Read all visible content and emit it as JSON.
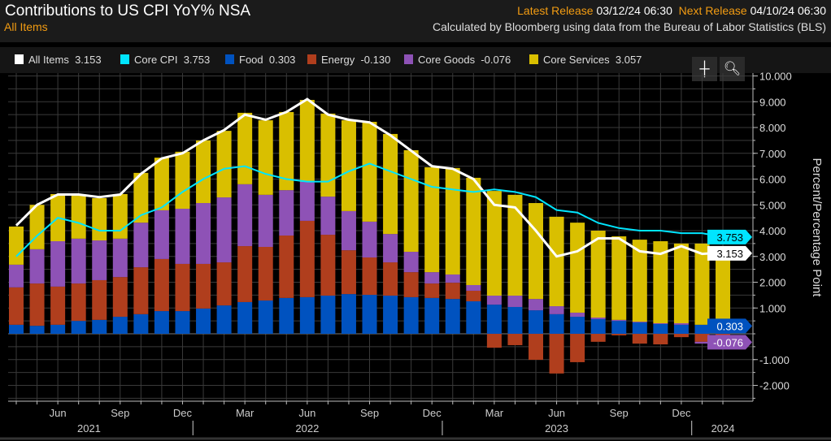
{
  "header": {
    "title": "Contributions to US CPI YoY% NSA",
    "subtitle": "All Items",
    "latest_label": "Latest Release",
    "latest_value": "03/12/24 06:30",
    "next_label": "Next Release",
    "next_value": "04/10/24 06:30",
    "source": "Calculated by Bloomberg using data from the Bureau of Labor Statistics (BLS)"
  },
  "legend": [
    {
      "label": "All Items",
      "value": "3.153",
      "color": "#ffffff"
    },
    {
      "label": "Core CPI",
      "value": "3.753",
      "color": "#00e5ff"
    },
    {
      "label": "Food",
      "value": "0.303",
      "color": "#0052bf"
    },
    {
      "label": "Energy",
      "value": "-0.130",
      "color": "#b03e1d"
    },
    {
      "label": "Core Goods",
      "value": "-0.076",
      "color": "#8e52b6"
    },
    {
      "label": "Core Services",
      "value": "3.057",
      "color": "#d9bf00"
    }
  ],
  "toolbar": {
    "crosshair_icon": "crosshair-icon",
    "zoom_icon": "magnifier-icon"
  },
  "chart_data": {
    "type": "bar+line",
    "stacked": true,
    "ylabel": "Percent/Percentage Point",
    "ylim": [
      -2.6,
      10.3
    ],
    "yticks": [
      "10.000",
      "9.000",
      "8.000",
      "7.000",
      "6.000",
      "5.000",
      "4.000",
      "3.000",
      "2.000",
      "1.000",
      "0",
      "-1.000",
      "-2.000"
    ],
    "grid": true,
    "x": [
      "2021-04",
      "2021-05",
      "2021-06",
      "2021-07",
      "2021-08",
      "2021-09",
      "2021-10",
      "2021-11",
      "2021-12",
      "2022-01",
      "2022-02",
      "2022-03",
      "2022-04",
      "2022-05",
      "2022-06",
      "2022-07",
      "2022-08",
      "2022-09",
      "2022-10",
      "2022-11",
      "2022-12",
      "2023-01",
      "2023-02",
      "2023-03",
      "2023-04",
      "2023-05",
      "2023-06",
      "2023-07",
      "2023-08",
      "2023-09",
      "2023-10",
      "2023-11",
      "2023-12",
      "2024-01",
      "2024-02"
    ],
    "xticks": [
      {
        "i": 2,
        "label": "Jun"
      },
      {
        "i": 5,
        "label": "Sep"
      },
      {
        "i": 8,
        "label": "Dec"
      },
      {
        "i": 11,
        "label": "Mar"
      },
      {
        "i": 14,
        "label": "Jun"
      },
      {
        "i": 17,
        "label": "Sep"
      },
      {
        "i": 20,
        "label": "Dec"
      },
      {
        "i": 23,
        "label": "Mar"
      },
      {
        "i": 26,
        "label": "Jun"
      },
      {
        "i": 29,
        "label": "Sep"
      },
      {
        "i": 32,
        "label": "Dec"
      }
    ],
    "years": [
      {
        "label": "2021",
        "i": 3.5
      },
      {
        "label": "2022",
        "i": 14
      },
      {
        "label": "2023",
        "i": 26
      },
      {
        "label": "2024",
        "i": 34
      }
    ],
    "bar_series": [
      {
        "name": "Food",
        "color": "#0052bf",
        "values": [
          0.35,
          0.31,
          0.35,
          0.5,
          0.54,
          0.66,
          0.76,
          0.88,
          0.88,
          0.98,
          1.1,
          1.23,
          1.29,
          1.39,
          1.42,
          1.48,
          1.54,
          1.51,
          1.48,
          1.42,
          1.39,
          1.35,
          1.26,
          1.13,
          1.04,
          0.91,
          0.76,
          0.66,
          0.57,
          0.5,
          0.44,
          0.38,
          0.35,
          0.35,
          0.303
        ]
      },
      {
        "name": "Energy",
        "color": "#b03e1d",
        "values": [
          1.45,
          1.64,
          1.48,
          1.45,
          1.54,
          1.54,
          1.82,
          2.02,
          1.83,
          1.73,
          1.67,
          2.17,
          2.08,
          2.42,
          2.96,
          2.36,
          1.7,
          1.45,
          1.29,
          0.97,
          0.56,
          0.63,
          0.41,
          -0.54,
          -0.44,
          -1.01,
          -1.54,
          -1.1,
          -0.31,
          -0.06,
          -0.38,
          -0.41,
          -0.13,
          -0.31,
          -0.13
        ]
      },
      {
        "name": "Core Goods",
        "color": "#8e52b6",
        "values": [
          0.88,
          1.33,
          1.76,
          1.74,
          1.54,
          1.49,
          1.73,
          1.89,
          2.14,
          2.36,
          2.52,
          2.4,
          2.02,
          1.76,
          1.51,
          1.48,
          1.52,
          1.39,
          1.1,
          0.79,
          0.44,
          0.32,
          0.22,
          0.35,
          0.44,
          0.44,
          0.31,
          0.16,
          0.06,
          0.04,
          0.03,
          0.03,
          0.06,
          -0.07,
          -0.076
        ]
      },
      {
        "name": "Core Services",
        "color": "#d9bf00",
        "values": [
          1.48,
          1.72,
          1.83,
          1.7,
          1.64,
          1.73,
          1.93,
          2.04,
          2.21,
          2.43,
          2.58,
          2.77,
          2.89,
          3.03,
          3.18,
          3.22,
          3.52,
          3.87,
          3.88,
          3.94,
          4.07,
          4.13,
          4.16,
          4.06,
          3.91,
          3.72,
          3.47,
          3.49,
          3.37,
          3.24,
          3.18,
          3.18,
          3.09,
          3.15,
          3.057
        ]
      }
    ],
    "line_series": [
      {
        "name": "All Items",
        "color": "#ffffff",
        "values": [
          4.2,
          5.0,
          5.4,
          5.4,
          5.3,
          5.4,
          6.2,
          6.8,
          7.0,
          7.5,
          7.9,
          8.5,
          8.3,
          8.6,
          9.1,
          8.5,
          8.3,
          8.2,
          7.7,
          7.1,
          6.5,
          6.4,
          6.0,
          5.0,
          4.9,
          4.0,
          3.0,
          3.2,
          3.7,
          3.7,
          3.2,
          3.1,
          3.4,
          3.1,
          3.153
        ]
      },
      {
        "name": "Core CPI",
        "color": "#00e5ff",
        "values": [
          3.0,
          3.8,
          4.5,
          4.3,
          4.0,
          4.0,
          4.6,
          4.9,
          5.5,
          6.0,
          6.4,
          6.5,
          6.2,
          6.0,
          5.9,
          5.9,
          6.3,
          6.6,
          6.3,
          6.0,
          5.7,
          5.6,
          5.5,
          5.6,
          5.5,
          5.3,
          4.8,
          4.7,
          4.3,
          4.1,
          4.0,
          4.0,
          3.9,
          3.9,
          3.753
        ]
      }
    ],
    "value_tags": [
      {
        "value": "3.753",
        "color": "#00e5ff",
        "text": "#000"
      },
      {
        "value": "3.153",
        "color": "#ffffff",
        "text": "#000"
      },
      {
        "value": "0.303",
        "color": "#0052bf",
        "text": "#fff"
      },
      {
        "value": "-0.076",
        "color": "#8e52b6",
        "text": "#fff"
      }
    ]
  }
}
